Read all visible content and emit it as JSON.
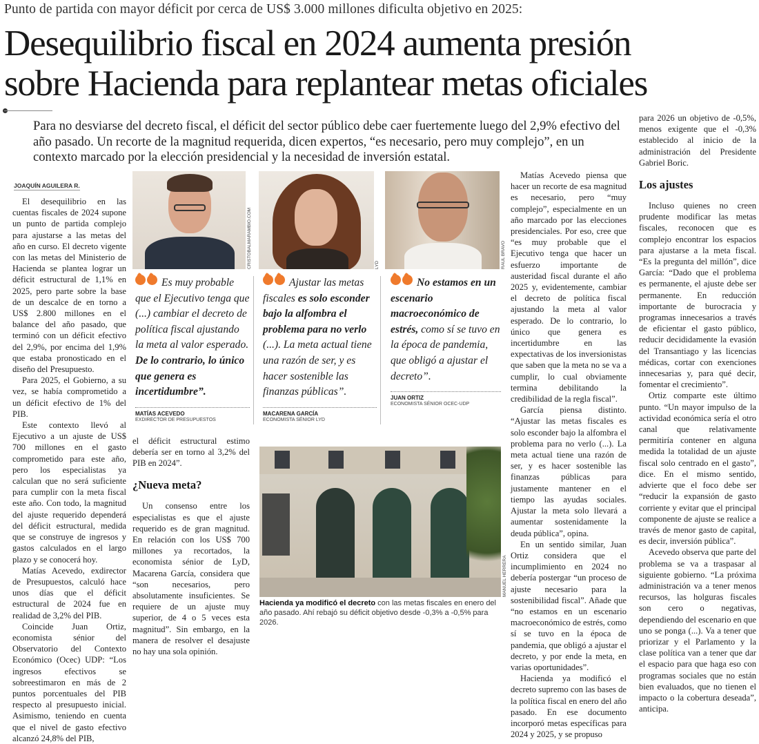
{
  "kicker": "Punto de partida con mayor déficit por cerca de US$ 3.000 millones dificulta objetivo en 2025:",
  "headline": [
    "Desequilibrio fiscal en 2024 aumenta presión",
    "sobre Hacienda para replantear metas oficiales"
  ],
  "deck": "Para no desviarse del decreto fiscal, el déficit del sector público debe caer fuertemente luego del 2,9% efectivo del año pasado. Un recorte de la magnitud requerida, dicen expertos, “es necesario, pero muy complejo”, en un contexto marcado por la elección presidencial y la necesidad de inversión estatal.",
  "byline": "JOAQUÍN AGUILERA R.",
  "column1": [
    "El desequilibrio en las cuentas fiscales de 2024 supone un punto de partida complejo para ajustarse a las metas del año en curso. El decreto vigente con las metas del Ministerio de Hacienda se plantea lograr un déficit estructural de 1,1% en 2025, pero parte sobre la base de un descalce de en torno a US$ 2.800 millones en el balance del año pasado, que terminó con un déficit efectivo del 2,9%, por encima del 1,9% que estaba pronosticado en el diseño del Presupuesto.",
    "Para 2025, el Gobierno, a su vez, se había comprometido a un déficit efectivo de 1% del PIB.",
    "Este contexto llevó al Ejecutivo a un ajuste de US$ 700 millones en el gasto comprometido para este año, pero los especialistas ya calculan que no será suficiente para cumplir con la meta fiscal este año. Con todo, la magnitud del ajuste requerido dependerá del déficit estructural, medida que se construye de ingresos y gastos calculados en el largo plazo y se conocerá hoy.",
    "Matías Acevedo, exdirector de Presupuestos, calculó hace unos días que el déficit estructural de 2024 fue en realidad de 3,2% del PIB.",
    "Coincide Juan Ortiz, economista sénior del Observatorio del Contexto Económico (Ocec) UDP: “Los ingresos efectivos se sobreestimaron en más de 2 puntos porcentuales del PIB respecto al presupuesto inicial. Asimismo, teniendo en cuenta que el nivel de gasto efectivo alcanzó 24,8% del PIB,"
  ],
  "column2": {
    "continuation": "el déficit estructural estimo debería ser en torno al 3,2% del PIB en 2024”.",
    "subhead": "¿Nueva meta?",
    "paragraphs": [
      "Un consenso entre los especialistas es que el ajuste requerido es de gran magnitud. En relación con los US$ 700 millones ya recortados, la economista sénior de LyD, Macarena García, considera que “son necesarios, pero absolutamente insuficientes. Se requiere de un ajuste muy superior, de 4 o 5 veces esta magnitud”. Sin embargo, en la manera de resolver el desajuste no hay una sola opinión."
    ]
  },
  "photos": [
    {
      "credit": "CRISTOBALMARAMBIO.COM"
    },
    {
      "credit": "LYD"
    },
    {
      "credit": "RAUL BRAVO"
    }
  ],
  "quotes": [
    {
      "pre": "Es muy probable que el Ejecutivo tenga que (...) cambiar el decreto de política fiscal ajustando la meta al valor esperado. ",
      "bold": "De lo contrario, lo único que genera es incertidumbre”.",
      "post": "",
      "name": "MATÍAS ACEVEDO",
      "role": "EXDIRECTOR DE PRESUPUESTOS"
    },
    {
      "pre": "Ajustar las metas fiscales ",
      "bold": "es solo esconder bajo la alfombra el problema para no verlo",
      "post": " (...). La meta actual tiene una razón de ser, y es hacer sostenible las finanzas públicas”.",
      "name": "MACARENA GARCÍA",
      "role": "ECONOMISTA SÉNIOR LYD"
    },
    {
      "pre": "",
      "bold": "No estamos en un escenario macroeconómico de estrés,",
      "post": " como sí se tuvo en la época de pandemia, que obligó a ajustar el decreto”.",
      "name": "JUAN ORTIZ",
      "role": "ECONOMISTA SÉNIOR OCEC-UDP"
    }
  ],
  "main_photo": {
    "credit": "MANUEL HERRERA",
    "caption_bold": "Hacienda ya modificó el decreto",
    "caption": " con las metas fiscales en enero del año pasado. Ahí rebajó su déficit objetivo desde -0,3% a -0,5% para 2026."
  },
  "column4": [
    "Matías Acevedo piensa que hacer un recorte de esa magnitud es necesario, pero “muy complejo”, especialmente en un año marcado por las elecciones presidenciales. Por eso, cree que “es muy probable que el Ejecutivo tenga que hacer un esfuerzo importante de austeridad fiscal durante el año 2025 y, evidentemente, cambiar el decreto de política fiscal ajustando la meta al valor esperado. De lo contrario, lo único que genera es incertidumbre en las expectativas de los inversionistas que saben que la meta no se va a cumplir, lo cual obviamente termina debilitando la credibilidad de la regla fiscal”.",
    "García piensa distinto. “Ajustar las metas fiscales es solo esconder bajo la alfombra el problema para no verlo (...). La meta actual tiene una razón de ser, y es hacer sostenible las finanzas públicas para justamente mantener en el tiempo las ayudas sociales. Ajustar la meta solo llevará a aumentar sostenidamente la deuda pública”, opina.",
    "En un sentido similar, Juan Ortiz considera que el incumplimiento en 2024 no debería postergar “un proceso de ajuste necesario para la sostenibilidad fiscal”. Añade que “no estamos en un escenario macroeconómico de estrés, como sí se tuvo en la época de pandemia, que obligó a ajustar el decreto, y por ende la meta, en varias oportunidades”.",
    "Hacienda ya modificó el decreto supremo con las bases de la política fiscal en enero del año pasado. En ese documento incorporó metas específicas para 2024 y 2025, y se propuso"
  ],
  "column5": {
    "continuation": "para 2026 un objetivo de -0,5%, menos exigente que el -0,3% establecido al inicio de la administración del Presidente Gabriel Boric.",
    "subhead": "Los ajustes",
    "paragraphs": [
      "Incluso quienes no creen prudente modificar las metas fiscales, reconocen que es complejo encontrar los espacios para ajustarse a la meta fiscal. “Es la pregunta del millón”, dice García: “Dado que el problema es permanente, el ajuste debe ser permanente. En reducción importante de burocracia y programas innecesarios a través de eficientar el gasto público, reducir decididamente la evasión del Transantiago y las licencias médicas, cortar con exenciones innecesarias y, para qué decir, fomentar el crecimiento”.",
      "Ortiz comparte este último punto. “Un mayor impulso de la actividad económica sería el otro canal que relativamente permitiría contener en alguna medida la totalidad de un ajuste fiscal solo centrado en el gasto”, dice. En el mismo sentido, advierte que el foco debe ser “reducir la expansión de gasto corriente y evitar que el principal componente de ajuste se realice a través de menor gasto de capital, es decir, inversión pública”.",
      "Acevedo observa que parte del problema se va a traspasar al siguiente gobierno. “La próxima administración va a tener menos recursos, las holguras fiscales son cero o negativas, dependiendo del escenario en que uno se ponga (...). Va a tener que priorizar y el Parlamento y la clase política van a tener que dar el espacio para que haga eso con programas sociales que no están bien evaluados, que no tienen el impacto o la cobertura deseada”, anticipa."
    ]
  },
  "colors": {
    "accent": "#ef7a2c",
    "text": "#222222"
  }
}
